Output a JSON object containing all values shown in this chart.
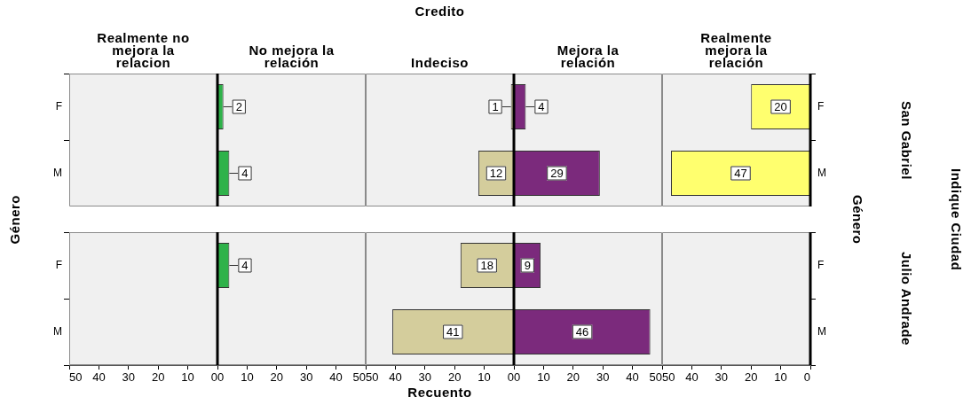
{
  "chart_data": [
    {
      "type": "bar",
      "orientation": "horizontal",
      "title": "Realmente no mejora la relacion",
      "ylabel": "Género",
      "categories": [
        "F",
        "M"
      ],
      "series": [
        {
          "values": [
            null,
            null
          ]
        }
      ],
      "xlim": [
        50,
        0
      ],
      "xticks": [
        0,
        10,
        20,
        30,
        40,
        50
      ],
      "tick_labels": "y",
      "data_labels": true
    },
    {
      "type": "bar",
      "orientation": "horizontal",
      "title": "No mejora la relación",
      "categories": [
        null,
        null
      ],
      "series": [
        {
          "color": "#2fb24a",
          "values": [
            2,
            4
          ]
        }
      ],
      "xlim": [
        0,
        50
      ],
      "xticks": [
        0,
        10,
        20,
        30,
        40,
        50
      ],
      "tick_labels": false,
      "data_labels": true
    },
    {
      "type": "bar",
      "orientation": "horizontal",
      "title": "Indeciso",
      "annotations": [
        "Credito"
      ],
      "categories": [
        null,
        null
      ],
      "series": [
        {
          "color": "#d4cd9c",
          "values": [
            1,
            12
          ]
        }
      ],
      "xlim": [
        50,
        0
      ],
      "xticks": [
        0,
        10,
        20,
        30,
        40,
        50
      ],
      "tick_labels": false,
      "data_labels": true
    },
    {
      "type": "bar",
      "orientation": "horizontal",
      "title": "Mejora la relación",
      "categories": [
        null,
        null
      ],
      "series": [
        {
          "color": "#7b2a7c",
          "values": [
            4,
            29
          ]
        }
      ],
      "xlim": [
        0,
        50
      ],
      "xticks": [
        0,
        10,
        20,
        30,
        40,
        50
      ],
      "tick_labels": false,
      "data_labels": true
    },
    {
      "type": "bar",
      "orientation": "horizontal",
      "title": "Realmente mejora la relación",
      "y2label": "Género",
      "annotations": [
        "San Gabriel",
        "Indique Ciudad"
      ],
      "categories": [
        "F",
        "M"
      ],
      "series": [
        {
          "color": "#ffff6e",
          "values": [
            20,
            47
          ]
        }
      ],
      "xlim": [
        50,
        0
      ],
      "xticks": [
        0,
        10,
        20,
        30,
        40,
        50
      ],
      "tick_labels": "y",
      "data_labels": true
    },
    {
      "type": "bar",
      "orientation": "horizontal",
      "categories": [
        "F",
        "M"
      ],
      "series": [
        {
          "values": [
            null,
            null
          ]
        }
      ],
      "xlim": [
        50,
        0
      ],
      "xticks": [
        0,
        10,
        20,
        30,
        40,
        50
      ],
      "data_labels": true
    },
    {
      "type": "bar",
      "orientation": "horizontal",
      "categories": [
        null,
        null
      ],
      "series": [
        {
          "color": "#2fb24a",
          "values": [
            4,
            null
          ]
        }
      ],
      "xlim": [
        0,
        50
      ],
      "xticks": [
        0,
        10,
        20,
        30,
        40,
        50
      ],
      "tick_labels": "x",
      "data_labels": true
    },
    {
      "type": "bar",
      "orientation": "horizontal",
      "xlabel": "Recuento",
      "categories": [
        null,
        null
      ],
      "series": [
        {
          "color": "#d4cd9c",
          "values": [
            18,
            41
          ]
        }
      ],
      "xlim": [
        50,
        0
      ],
      "xticks": [
        0,
        10,
        20,
        30,
        40,
        50
      ],
      "tick_labels": "x",
      "data_labels": true
    },
    {
      "type": "bar",
      "orientation": "horizontal",
      "categories": [
        null,
        null
      ],
      "series": [
        {
          "color": "#7b2a7c",
          "values": [
            9,
            46
          ]
        }
      ],
      "xlim": [
        0,
        50
      ],
      "xticks": [
        0,
        10,
        20,
        30,
        40,
        50
      ],
      "tick_labels": "x",
      "data_labels": true
    },
    {
      "type": "bar",
      "orientation": "horizontal",
      "annotations": [
        "Julio Andrade"
      ],
      "categories": [
        "F",
        "M"
      ],
      "series": [
        {
          "values": [
            null,
            null
          ]
        }
      ],
      "xlim": [
        50,
        0
      ],
      "xticks": [
        0,
        10,
        20,
        30,
        40,
        50
      ],
      "data_labels": true
    }
  ]
}
